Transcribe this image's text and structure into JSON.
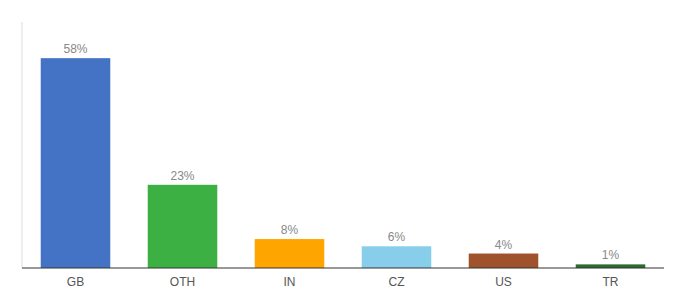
{
  "chart_data": {
    "type": "bar",
    "categories": [
      "GB",
      "OTH",
      "IN",
      "CZ",
      "US",
      "TR"
    ],
    "values": [
      58,
      23,
      8,
      6,
      4,
      1
    ],
    "value_labels": [
      "58%",
      "23%",
      "8%",
      "6%",
      "4%",
      "1%"
    ],
    "colors": [
      "#4472C4",
      "#3CB043",
      "#FFA500",
      "#87CEEB",
      "#A0522D",
      "#2D6A2D"
    ],
    "ylim": [
      0,
      68
    ],
    "data_labels": true,
    "tick_labels": "x",
    "grid": false
  }
}
